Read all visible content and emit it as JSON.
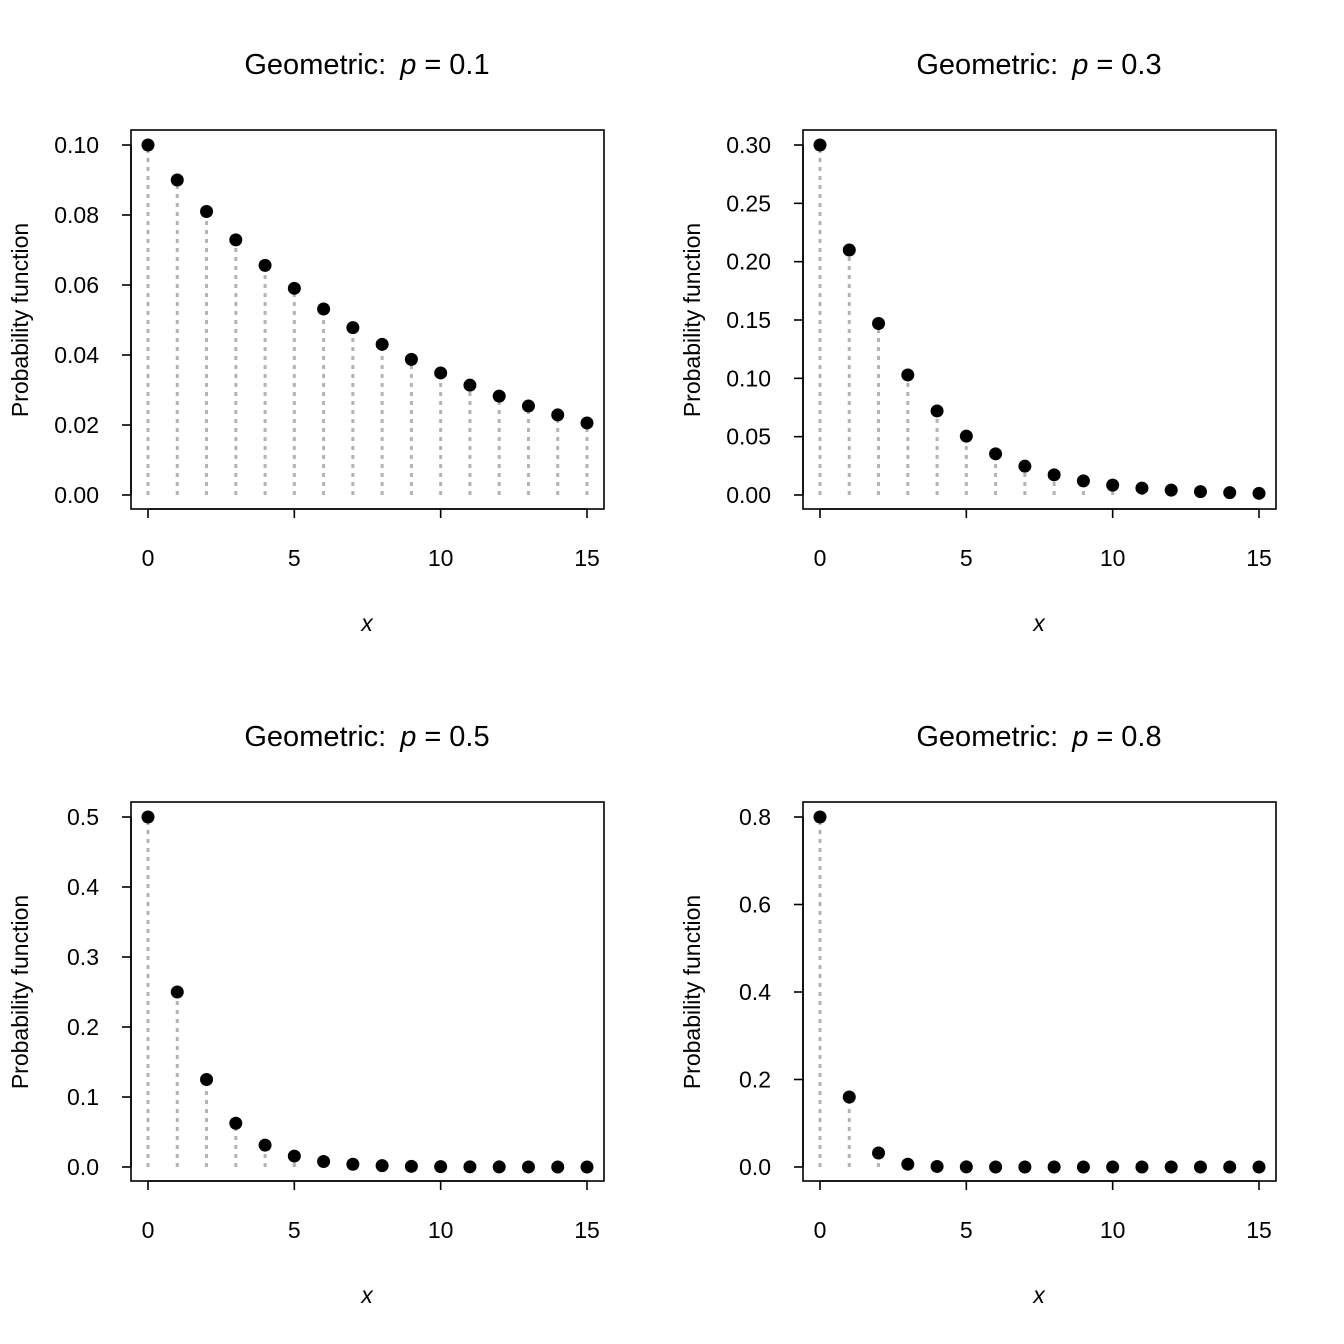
{
  "chart_data": [
    {
      "type": "scatter",
      "style": "points with grey dotted vertical lines to zero",
      "title": {
        "prefix": "Geometric:",
        "param": "p",
        "eq": "=",
        "value": "0.1"
      },
      "xlabel": "x",
      "ylabel": "Probability function",
      "x": [
        0,
        1,
        2,
        3,
        4,
        5,
        6,
        7,
        8,
        9,
        10,
        11,
        12,
        13,
        14,
        15
      ],
      "values": [
        0.1,
        0.09,
        0.081,
        0.0729,
        0.06561,
        0.059049,
        0.0531441,
        0.04782969,
        0.04304672,
        0.03874205,
        0.03486784,
        0.03138106,
        0.02824295,
        0.02541866,
        0.02287679,
        0.02058911
      ],
      "xticks": [
        "0",
        "5",
        "10",
        "15"
      ],
      "yticks": [
        "0.00",
        "0.02",
        "0.04",
        "0.06",
        "0.08",
        "0.10"
      ],
      "xlim": [
        0,
        15
      ],
      "ylim": [
        0,
        0.1
      ],
      "grid": false
    },
    {
      "type": "scatter",
      "style": "points with grey dotted vertical lines to zero",
      "title": {
        "prefix": "Geometric:",
        "param": "p",
        "eq": "=",
        "value": "0.3"
      },
      "xlabel": "x",
      "ylabel": "Probability function",
      "x": [
        0,
        1,
        2,
        3,
        4,
        5,
        6,
        7,
        8,
        9,
        10,
        11,
        12,
        13,
        14,
        15
      ],
      "values": [
        0.3,
        0.21,
        0.147,
        0.1029,
        0.07203,
        0.050421,
        0.0352947,
        0.02470629,
        0.0172944,
        0.01210608,
        0.00847426,
        0.00593198,
        0.00415239,
        0.00290667,
        0.00203467,
        0.00142427
      ],
      "xticks": [
        "0",
        "5",
        "10",
        "15"
      ],
      "yticks": [
        "0.00",
        "0.05",
        "0.10",
        "0.15",
        "0.20",
        "0.25",
        "0.30"
      ],
      "xlim": [
        0,
        15
      ],
      "ylim": [
        0,
        0.3
      ],
      "grid": false
    },
    {
      "type": "scatter",
      "style": "points with grey dotted vertical lines to zero",
      "title": {
        "prefix": "Geometric:",
        "param": "p",
        "eq": "=",
        "value": "0.5"
      },
      "xlabel": "x",
      "ylabel": "Probability function",
      "x": [
        0,
        1,
        2,
        3,
        4,
        5,
        6,
        7,
        8,
        9,
        10,
        11,
        12,
        13,
        14,
        15
      ],
      "values": [
        0.5,
        0.25,
        0.125,
        0.0625,
        0.03125,
        0.015625,
        0.0078125,
        0.00390625,
        0.00195313,
        0.00097656,
        0.00048828,
        0.00024414,
        0.00012207,
        6.104e-05,
        3.052e-05,
        1.526e-05
      ],
      "xticks": [
        "0",
        "5",
        "10",
        "15"
      ],
      "yticks": [
        "0.0",
        "0.1",
        "0.2",
        "0.3",
        "0.4",
        "0.5"
      ],
      "xlim": [
        0,
        15
      ],
      "ylim": [
        0,
        0.5
      ],
      "grid": false
    },
    {
      "type": "scatter",
      "style": "points with grey dotted vertical lines to zero",
      "title": {
        "prefix": "Geometric:",
        "param": "p",
        "eq": "=",
        "value": "0.8"
      },
      "xlabel": "x",
      "ylabel": "Probability function",
      "x": [
        0,
        1,
        2,
        3,
        4,
        5,
        6,
        7,
        8,
        9,
        10,
        11,
        12,
        13,
        14,
        15
      ],
      "values": [
        0.8,
        0.16,
        0.032,
        0.0064,
        0.00128,
        0.000256,
        5.12e-05,
        1.024e-05,
        2.048e-06,
        4.096e-07,
        8.192e-08,
        1.6384e-08,
        3.2768e-09,
        6.5536e-10,
        1.31072e-10,
        2.62144e-11
      ],
      "xticks": [
        "0",
        "5",
        "10",
        "15"
      ],
      "yticks": [
        "0.0",
        "0.2",
        "0.4",
        "0.6",
        "0.8"
      ],
      "xlim": [
        0,
        15
      ],
      "ylim": [
        0,
        0.8
      ],
      "grid": false
    }
  ],
  "colors": {
    "points": "#000000",
    "stems": "#b3b3b3",
    "axes": "#000000"
  }
}
